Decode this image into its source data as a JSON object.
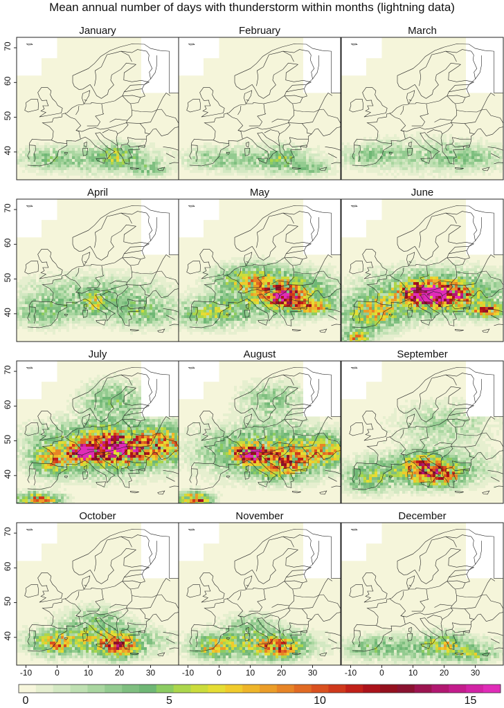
{
  "title": "Mean annual number of days with thunderstorm within months (lightning data)",
  "months": [
    "January",
    "February",
    "March",
    "April",
    "May",
    "June",
    "July",
    "August",
    "September",
    "October",
    "November",
    "December"
  ],
  "axes": {
    "y_ticks": [
      "70",
      "60",
      "50",
      "40"
    ],
    "x_ticks": [
      "-10",
      "0",
      "10",
      "20",
      "30"
    ]
  },
  "colorbar": {
    "range": [
      0,
      16
    ],
    "tick_labels": [
      "0",
      "5",
      "10",
      "15"
    ],
    "tick_values": [
      0,
      5,
      10,
      15
    ],
    "colors": [
      "#f7f6dc",
      "#e6efcf",
      "#d3e8c2",
      "#bfe0b2",
      "#a9d6a0",
      "#93cb90",
      "#7fbf80",
      "#6fb775",
      "#8ccc62",
      "#acd64c",
      "#cbdc3c",
      "#e5dd34",
      "#f0cb2c",
      "#eeb52a",
      "#eb9d28",
      "#e78426",
      "#e16a23",
      "#d9501f",
      "#cf381b",
      "#c12018",
      "#ab121a",
      "#94101e",
      "#8a1230",
      "#9c1450",
      "#b11770",
      "#c31c8c",
      "#d223a5",
      "#e02cb8"
    ]
  },
  "map_colors": {
    "land": "#f5f5da",
    "water": "#ffffff",
    "border": "#222222"
  }
}
